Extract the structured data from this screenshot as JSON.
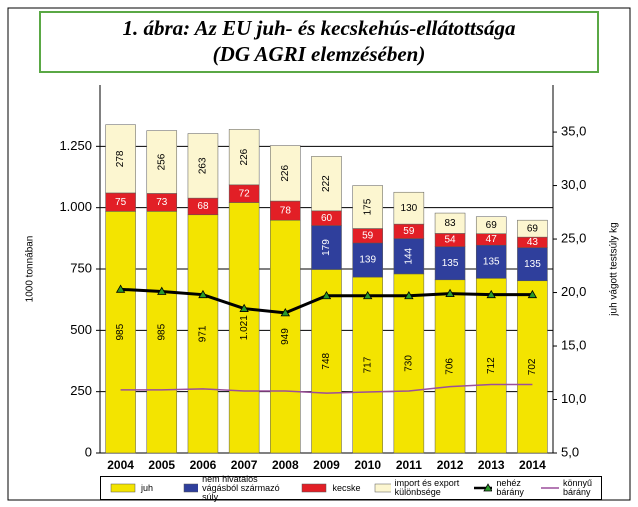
{
  "chart_data": {
    "type": "bar",
    "stacked": true,
    "title": "1. ábra: Az EU juh- és kecskehús-ellátottsága",
    "subtitle": "(DG AGRI elemzésében)",
    "ylabel": "1000 tonnában",
    "y2label": "juh vágott testsúly kg",
    "categories": [
      "2004",
      "2005",
      "2006",
      "2007",
      "2008",
      "2009",
      "2010",
      "2011",
      "2012",
      "2013",
      "2014"
    ],
    "ylim": [
      0,
      1500
    ],
    "yticks": [
      0,
      250,
      500,
      750,
      {
        "value": 1000,
        "label": "1.000"
      },
      {
        "value": 1250,
        "label": "1.250"
      }
    ],
    "y2lim": [
      5,
      39.4
    ],
    "y2ticks": [
      {
        "value": 5,
        "label": "5,0"
      },
      {
        "value": 10,
        "label": "10,0"
      },
      {
        "value": 15,
        "label": "15,0"
      },
      {
        "value": 20,
        "label": "20,0"
      },
      {
        "value": 25,
        "label": "25,0"
      },
      {
        "value": 30,
        "label": "30,0"
      },
      {
        "value": 35,
        "label": "35,0"
      }
    ],
    "grid": true,
    "series": [
      {
        "name": "juh",
        "type": "bar",
        "color": "#f3e400",
        "label_color": "#000000",
        "values": [
          985,
          985,
          971,
          1021,
          949,
          748,
          717,
          730,
          706,
          712,
          702
        ],
        "value_labels": [
          "985",
          "985",
          "971",
          "1.021",
          "949",
          "748",
          "717",
          "730",
          "706",
          "712",
          "702"
        ]
      },
      {
        "name": "nem hivatalos vágásból származó súly",
        "type": "bar",
        "color": "#2f3f9c",
        "label_color": "#ffffff",
        "values": [
          null,
          null,
          null,
          null,
          null,
          179,
          139,
          144,
          135,
          135,
          135
        ]
      },
      {
        "name": "kecske",
        "type": "bar",
        "color": "#e21f26",
        "label_color": "#ffffff",
        "values": [
          75,
          73,
          68,
          72,
          78,
          60,
          59,
          59,
          54,
          47,
          43
        ]
      },
      {
        "name": "import és export különbsége",
        "type": "bar",
        "color": "#fcf6d0",
        "label_color": "#000000",
        "values": [
          278,
          256,
          263,
          226,
          226,
          222,
          175,
          130,
          83,
          69,
          69
        ]
      },
      {
        "name": "nehéz bárány",
        "type": "line",
        "axis": "y2",
        "color": "#000000",
        "marker": "triangle",
        "values": [
          20.3,
          20.1,
          19.8,
          18.5,
          18.1,
          19.7,
          19.7,
          19.7,
          19.9,
          19.8,
          19.8
        ]
      },
      {
        "name": "könnyű bárány",
        "type": "line",
        "axis": "y2",
        "color": "#9b4f9b",
        "values": [
          10.9,
          10.9,
          11.0,
          10.8,
          10.8,
          10.6,
          10.7,
          10.8,
          11.2,
          11.4,
          11.4
        ]
      }
    ]
  }
}
